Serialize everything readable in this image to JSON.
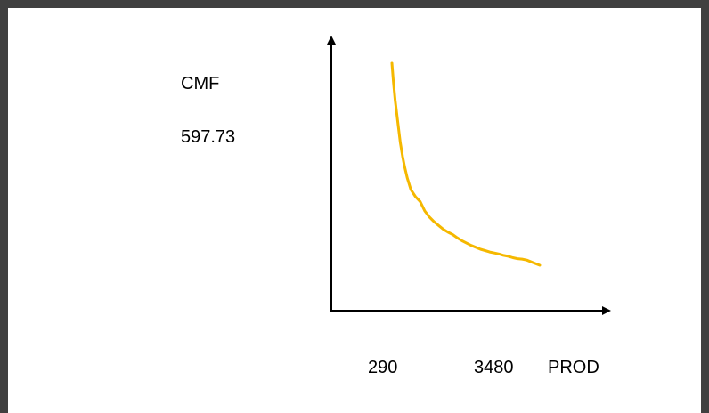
{
  "chart_data": {
    "type": "line",
    "ylabel": "CMF",
    "xlabel": "PROD",
    "y_tick_labels": [
      "597.73"
    ],
    "x_tick_labels": [
      "290",
      "3480"
    ],
    "series": [
      {
        "color": "#F5B800",
        "x": [
          290,
          320,
          360,
          420,
          470,
          520,
          560,
          620,
          700,
          800,
          900,
          1000,
          1100,
          1200,
          1300,
          1400,
          1500,
          1600,
          1700,
          1800,
          1900,
          2000,
          2100,
          2200,
          2300,
          2400,
          2500,
          2600,
          2700,
          2800,
          2900,
          3000,
          3100,
          3200,
          3300,
          3400,
          3480
        ],
        "y": [
          597.73,
          560,
          520,
          470,
          430,
          400,
          380,
          355,
          330,
          315,
          305,
          285,
          272,
          262,
          254,
          246,
          240,
          235,
          228,
          222,
          217,
          212,
          208,
          204,
          201,
          198,
          196,
          194,
          191,
          189,
          186,
          184,
          183,
          181,
          177,
          173,
          170
        ]
      }
    ],
    "xlim": [
      0,
      4200
    ],
    "ylim": [
      0,
      680
    ]
  },
  "colors": {
    "frame": "#404040",
    "axis": "#000000",
    "curve": "#F5B800"
  }
}
